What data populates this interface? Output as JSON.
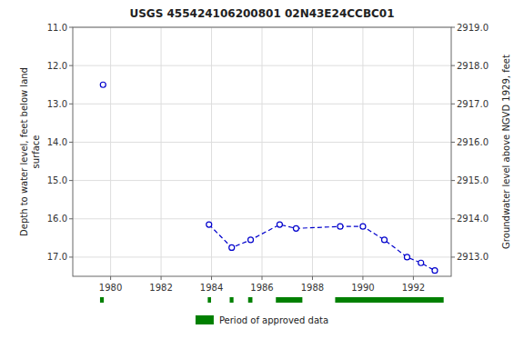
{
  "chart_data": {
    "type": "line",
    "title": "USGS 455424106200801 02N43E24CCBC01",
    "ylabel": "Depth to water level, feet below land\nsurface",
    "y2label": "Groundwater level above NGVD 1929, feet",
    "series": [
      {
        "color": "#0000cc",
        "marker": "circle",
        "line_style": "dashed",
        "x": [
          1979.7
        ],
        "values": [
          12.5
        ]
      },
      {
        "color": "#0000cc",
        "marker": "circle",
        "line_style": "dashed",
        "x": [
          1983.9,
          1984.8,
          1985.55,
          1986.7,
          1987.35,
          1989.1,
          1990.0,
          1990.85,
          1991.75,
          1992.3,
          1992.85
        ],
        "values": [
          16.15,
          16.75,
          16.55,
          16.15,
          16.25,
          16.2,
          16.2,
          16.55,
          17.0,
          17.15,
          17.35
        ]
      }
    ],
    "approved_periods": {
      "name": "Period of approved data",
      "color": "#008000",
      "ranges": [
        [
          1979.58,
          1979.73
        ],
        [
          1983.85,
          1983.98
        ],
        [
          1984.72,
          1984.87
        ],
        [
          1985.45,
          1985.62
        ],
        [
          1986.55,
          1987.6
        ],
        [
          1988.9,
          1993.2
        ]
      ]
    },
    "xlim": [
      1978.5,
      1993.5
    ],
    "xticks": [
      1980,
      1982,
      1984,
      1986,
      1988,
      1990,
      1992
    ],
    "ylim": [
      17.5,
      11.0
    ],
    "yticks": [
      {
        "value": 11.0,
        "label": "11.0"
      },
      {
        "value": 12.0,
        "label": "12.0"
      },
      {
        "value": 13.0,
        "label": "13.0"
      },
      {
        "value": 14.0,
        "label": "14.0"
      },
      {
        "value": 15.0,
        "label": "15.0"
      },
      {
        "value": 16.0,
        "label": "16.0"
      },
      {
        "value": 17.0,
        "label": "17.0"
      }
    ],
    "y2lim": [
      2912.5,
      2919.0
    ],
    "y2ticks": [
      {
        "value": 2913.0,
        "label": "2913.0"
      },
      {
        "value": 2914.0,
        "label": "2914.0"
      },
      {
        "value": 2915.0,
        "label": "2915.0"
      },
      {
        "value": 2916.0,
        "label": "2916.0"
      },
      {
        "value": 2917.0,
        "label": "2917.0"
      },
      {
        "value": 2918.0,
        "label": "2918.0"
      },
      {
        "value": 2919.0,
        "label": "2919.0"
      }
    ],
    "grid": true,
    "legend": "bottom"
  }
}
